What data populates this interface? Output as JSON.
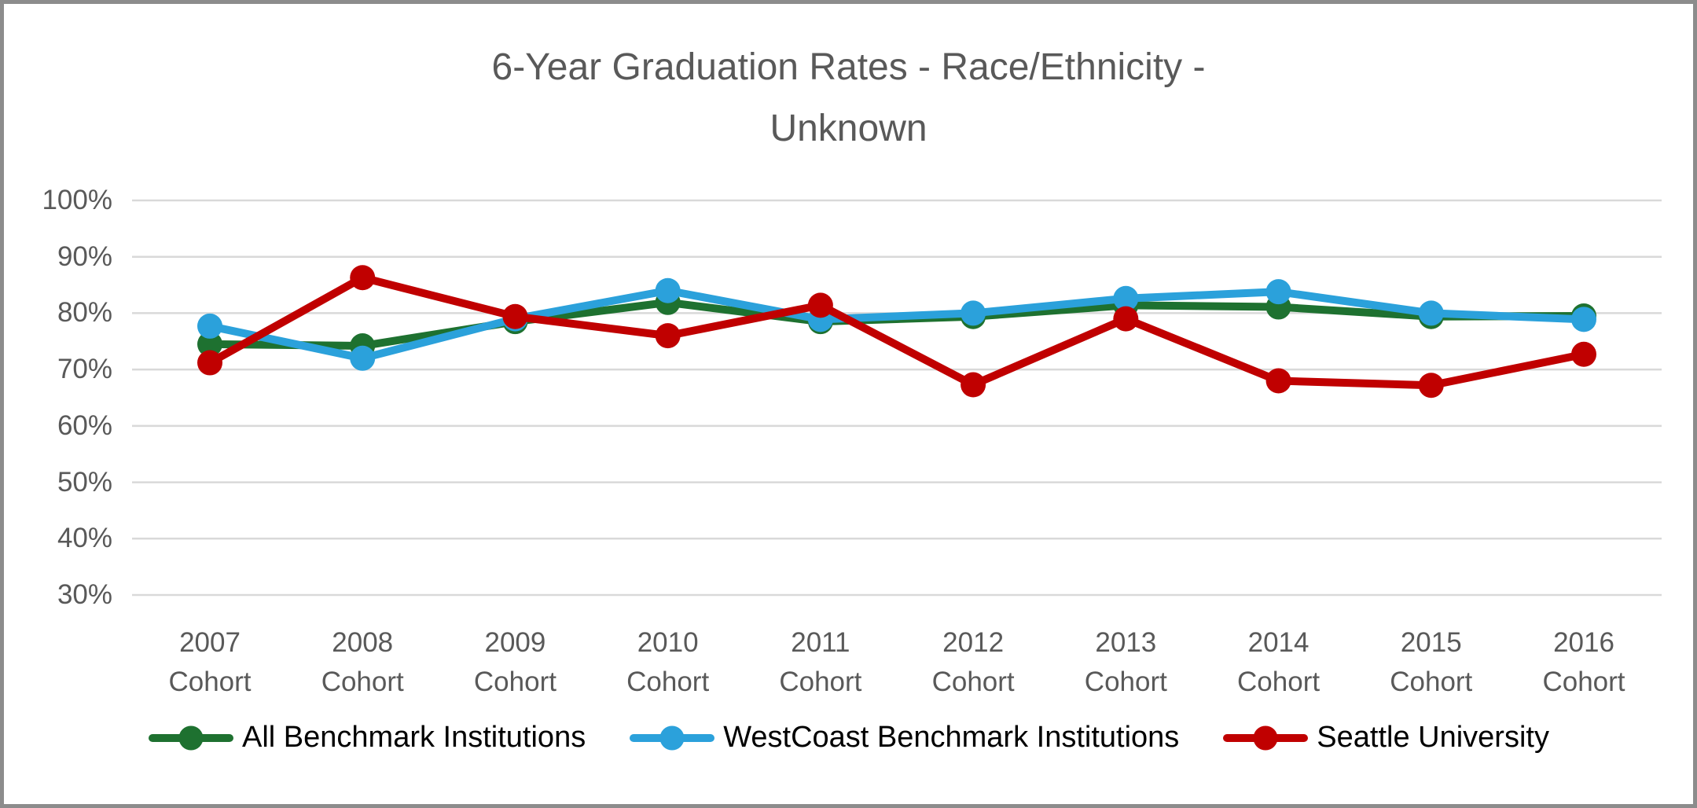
{
  "title_line1": "6-Year Graduation Rates - Race/Ethnicity -",
  "title_line2": "Unknown",
  "chart_data": {
    "type": "line",
    "title": "6-Year Graduation Rates - Race/Ethnicity - Unknown",
    "categories": [
      "2007 Cohort",
      "2008 Cohort",
      "2009 Cohort",
      "2010 Cohort",
      "2011 Cohort",
      "2012 Cohort",
      "2013 Cohort",
      "2014 Cohort",
      "2015 Cohort",
      "2016 Cohort"
    ],
    "y_ticks": [
      "100%",
      "90%",
      "80%",
      "70%",
      "60%",
      "50%",
      "40%",
      "30%"
    ],
    "ylim": [
      30,
      100
    ],
    "grid": true,
    "legend_position": "bottom",
    "xlabel": "",
    "ylabel": "",
    "series": [
      {
        "name": "All Benchmark Institutions",
        "color": "#1E7130",
        "values": [
          74.5,
          74.2,
          78.5,
          81.9,
          78.5,
          79.4,
          81.4,
          81.1,
          79.4,
          79.5
        ]
      },
      {
        "name": "WestCoast Benchmark Institutions",
        "color": "#2BA1DB",
        "values": [
          77.7,
          72.0,
          79.0,
          84.0,
          78.9,
          80.0,
          82.6,
          83.8,
          80.0,
          78.9
        ]
      },
      {
        "name": "Seattle University",
        "color": "#C00000",
        "values": [
          71.2,
          86.3,
          79.4,
          76.0,
          81.4,
          67.3,
          79.0,
          68.0,
          67.2,
          72.7
        ]
      }
    ]
  },
  "colors": {
    "gridline": "#D9D9D9",
    "axis_text": "#595959",
    "title_text": "#595959",
    "legend_text": "#000000",
    "frame_border": "#8C8C8C",
    "background": "#FFFFFF"
  }
}
